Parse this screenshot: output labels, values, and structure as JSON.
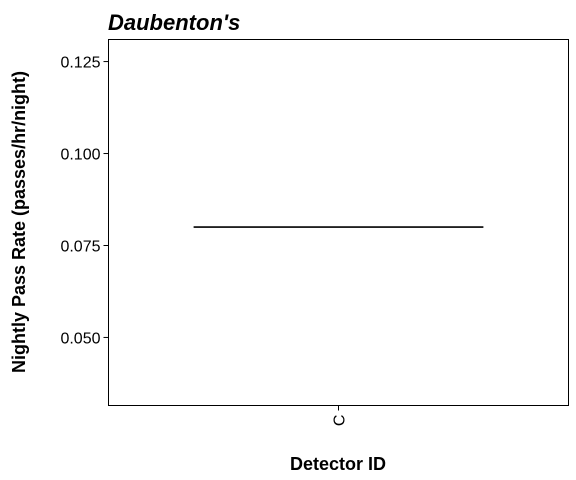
{
  "chart_data": {
    "type": "boxplot",
    "title": "Daubenton's",
    "xlabel": "Detector ID",
    "ylabel": "Nightly Pass Rate (passes/hr/night)",
    "categories": [
      "C"
    ],
    "series": [
      {
        "values": [
          0.08
        ]
      }
    ],
    "ylim": [
      0.0315,
      0.131
    ],
    "yticks": [
      0.05,
      0.075,
      0.1,
      0.125
    ],
    "ytick_labels": [
      "0.050",
      "0.075",
      "0.100",
      "0.125"
    ],
    "grid": false,
    "legend": "none",
    "colors": {
      "line": "#000000",
      "panel_border": "#000000",
      "background": "#ffffff"
    }
  }
}
